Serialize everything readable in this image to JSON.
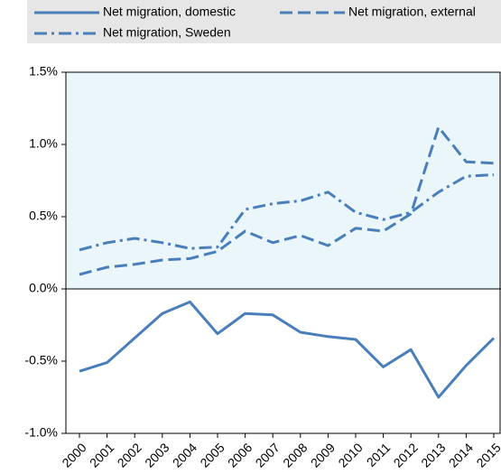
{
  "chart_data": {
    "type": "line",
    "categories": [
      "2000",
      "2001",
      "2002",
      "2003",
      "2004",
      "2005",
      "2006",
      "2007",
      "2008",
      "2009",
      "2010",
      "2011",
      "2012",
      "2013",
      "2014",
      "2015"
    ],
    "series": [
      {
        "name": "Net migration, domestic",
        "color": "#4a7ebb",
        "dash": "solid",
        "values": [
          -0.57,
          -0.51,
          -0.34,
          -0.17,
          -0.09,
          -0.31,
          -0.17,
          -0.18,
          -0.3,
          -0.33,
          -0.35,
          -0.54,
          -0.42,
          -0.75,
          -0.53,
          -0.34
        ]
      },
      {
        "name": "Net migration, external",
        "color": "#4a7ebb",
        "dash": "dashed",
        "values": [
          0.1,
          0.15,
          0.17,
          0.2,
          0.21,
          0.26,
          0.4,
          0.32,
          0.37,
          0.3,
          0.42,
          0.4,
          0.52,
          1.12,
          0.88,
          0.87
        ]
      },
      {
        "name": "Net migration, Sweden",
        "color": "#4a7ebb",
        "dash": "dashdot",
        "values": [
          0.27,
          0.32,
          0.35,
          0.32,
          0.28,
          0.29,
          0.55,
          0.59,
          0.61,
          0.67,
          0.53,
          0.48,
          0.53,
          0.67,
          0.78,
          0.79
        ]
      }
    ],
    "ylim": [
      -1.0,
      1.5
    ],
    "yticks": [
      {
        "value": -1.0,
        "label": "-1.0%"
      },
      {
        "value": -0.5,
        "label": "-0.5%"
      },
      {
        "value": 0,
        "label": "0.0%"
      },
      {
        "value": 0.5,
        "label": "0.5%"
      },
      {
        "value": 1.0,
        "label": "1.0%"
      },
      {
        "value": 1.5,
        "label": "1.5%"
      }
    ],
    "positive_fill": "#eaf6fa",
    "legend": "top"
  }
}
